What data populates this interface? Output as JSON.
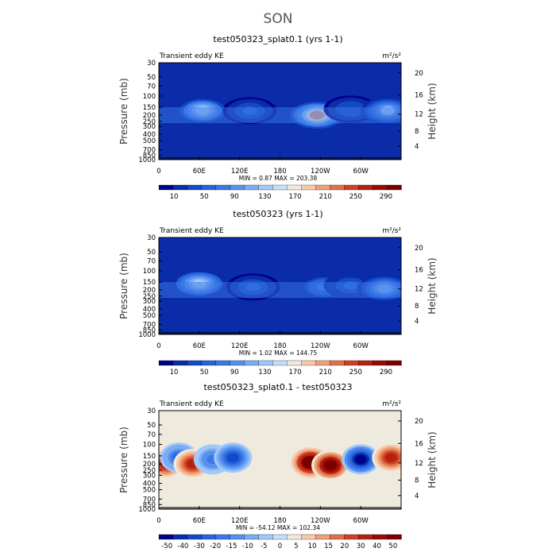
{
  "figure": {
    "title": "SON"
  },
  "chart_data": [
    {
      "type": "heatmap",
      "title": "test050323_splat0.1 (yrs 1-1)",
      "left_label": "Transient eddy KE",
      "right_label": "m²/s²",
      "xlabel": "",
      "ylabel": "Pressure (mb)",
      "ylabel_right": "Height (km)",
      "x_ticks": [
        "0",
        "60E",
        "120E",
        "180",
        "120W",
        "60W"
      ],
      "y_ticks": [
        "30",
        "50",
        "70",
        "100",
        "150",
        "200",
        "250",
        "300",
        "400",
        "500",
        "700",
        "850",
        "1000"
      ],
      "y_ticks_right": [
        "20",
        "16",
        "12",
        "8",
        "4"
      ],
      "stats": "MIN =    0.87   MAX = 203.38",
      "min": 0.87,
      "max": 203.38,
      "colorbar_labels": [
        "10",
        "50",
        "90",
        "130",
        "170",
        "210",
        "250",
        "290"
      ],
      "colorbar_colors": [
        "#00008b",
        "#0a2ca8",
        "#1449c8",
        "#2563dd",
        "#3a78e6",
        "#5790ee",
        "#7aacf4",
        "#a0c8f8",
        "#c7def9",
        "#eeeade",
        "#f8c8a8",
        "#f0a077",
        "#e07048",
        "#cc4025",
        "#b52010",
        "#9a0a04",
        "#7a0000"
      ],
      "hotspots": [
        {
          "lon": 65,
          "p": 170,
          "value": 135
        },
        {
          "lon": 135,
          "p": 170,
          "value": 55
        },
        {
          "lon": 235,
          "p": 200,
          "value": 200
        },
        {
          "lon": 285,
          "p": 160,
          "value": 50
        },
        {
          "lon": 340,
          "p": 170,
          "value": 125
        }
      ]
    },
    {
      "type": "heatmap",
      "title": "test050323 (yrs 1-1)",
      "left_label": "Transient eddy KE",
      "right_label": "m²/s²",
      "xlabel": "",
      "ylabel": "Pressure (mb)",
      "ylabel_right": "Height (km)",
      "x_ticks": [
        "0",
        "60E",
        "120E",
        "180",
        "120W",
        "60W"
      ],
      "y_ticks": [
        "30",
        "50",
        "70",
        "100",
        "150",
        "200",
        "250",
        "300",
        "400",
        "500",
        "700",
        "850",
        "1000"
      ],
      "y_ticks_right": [
        "20",
        "16",
        "12",
        "8",
        "4"
      ],
      "stats": "MIN =    1.02   MAX = 144.75",
      "min": 1.02,
      "max": 144.75,
      "colorbar_labels": [
        "10",
        "50",
        "90",
        "130",
        "170",
        "210",
        "250",
        "290"
      ],
      "colorbar_colors": [
        "#00008b",
        "#0a2ca8",
        "#1449c8",
        "#2563dd",
        "#3a78e6",
        "#5790ee",
        "#7aacf4",
        "#a0c8f8",
        "#c7def9",
        "#eeeade",
        "#f8c8a8",
        "#f0a077",
        "#e07048",
        "#cc4025",
        "#b52010",
        "#9a0a04",
        "#7a0000"
      ],
      "hotspots": [
        {
          "lon": 60,
          "p": 160,
          "value": 140
        },
        {
          "lon": 140,
          "p": 180,
          "value": 55
        },
        {
          "lon": 245,
          "p": 180,
          "value": 80
        },
        {
          "lon": 285,
          "p": 170,
          "value": 60
        },
        {
          "lon": 335,
          "p": 190,
          "value": 110
        }
      ]
    },
    {
      "type": "heatmap",
      "title": "test050323_splat0.1 - test050323",
      "left_label": "Transient eddy KE",
      "right_label": "m²/s²",
      "xlabel": "",
      "ylabel": "Pressure (mb)",
      "ylabel_right": "Height (km)",
      "x_ticks": [
        "0",
        "60E",
        "120E",
        "180",
        "120W",
        "60W"
      ],
      "y_ticks": [
        "30",
        "50",
        "70",
        "100",
        "150",
        "200",
        "250",
        "300",
        "400",
        "500",
        "700",
        "850",
        "1000"
      ],
      "y_ticks_right": [
        "20",
        "16",
        "12",
        "8",
        "4"
      ],
      "stats": "MIN =  -54.12   MAX = 102.34",
      "min": -54.12,
      "max": 102.34,
      "colorbar_labels": [
        "-50",
        "-40",
        "-30",
        "-20",
        "-15",
        "-10",
        "-5",
        "0",
        "5",
        "10",
        "15",
        "20",
        "30",
        "40",
        "50"
      ],
      "colorbar_colors": [
        "#00008b",
        "#0a2ca8",
        "#1449c8",
        "#2563dd",
        "#3a78e6",
        "#5790ee",
        "#7aacf4",
        "#a0c8f8",
        "#c7def9",
        "#eeeade",
        "#f8c8a8",
        "#f0a077",
        "#e07048",
        "#cc4025",
        "#b52010",
        "#9a0a04",
        "#7a0000"
      ],
      "hotspots": [
        {
          "lon": 10,
          "p": 200,
          "value": 40
        },
        {
          "lon": 30,
          "p": 160,
          "value": -30
        },
        {
          "lon": 50,
          "p": 200,
          "value": 35
        },
        {
          "lon": 80,
          "p": 170,
          "value": -25
        },
        {
          "lon": 110,
          "p": 160,
          "value": -40
        },
        {
          "lon": 225,
          "p": 190,
          "value": 60
        },
        {
          "lon": 255,
          "p": 210,
          "value": 55
        },
        {
          "lon": 300,
          "p": 170,
          "value": -50
        },
        {
          "lon": 345,
          "p": 160,
          "value": 40
        }
      ]
    }
  ]
}
